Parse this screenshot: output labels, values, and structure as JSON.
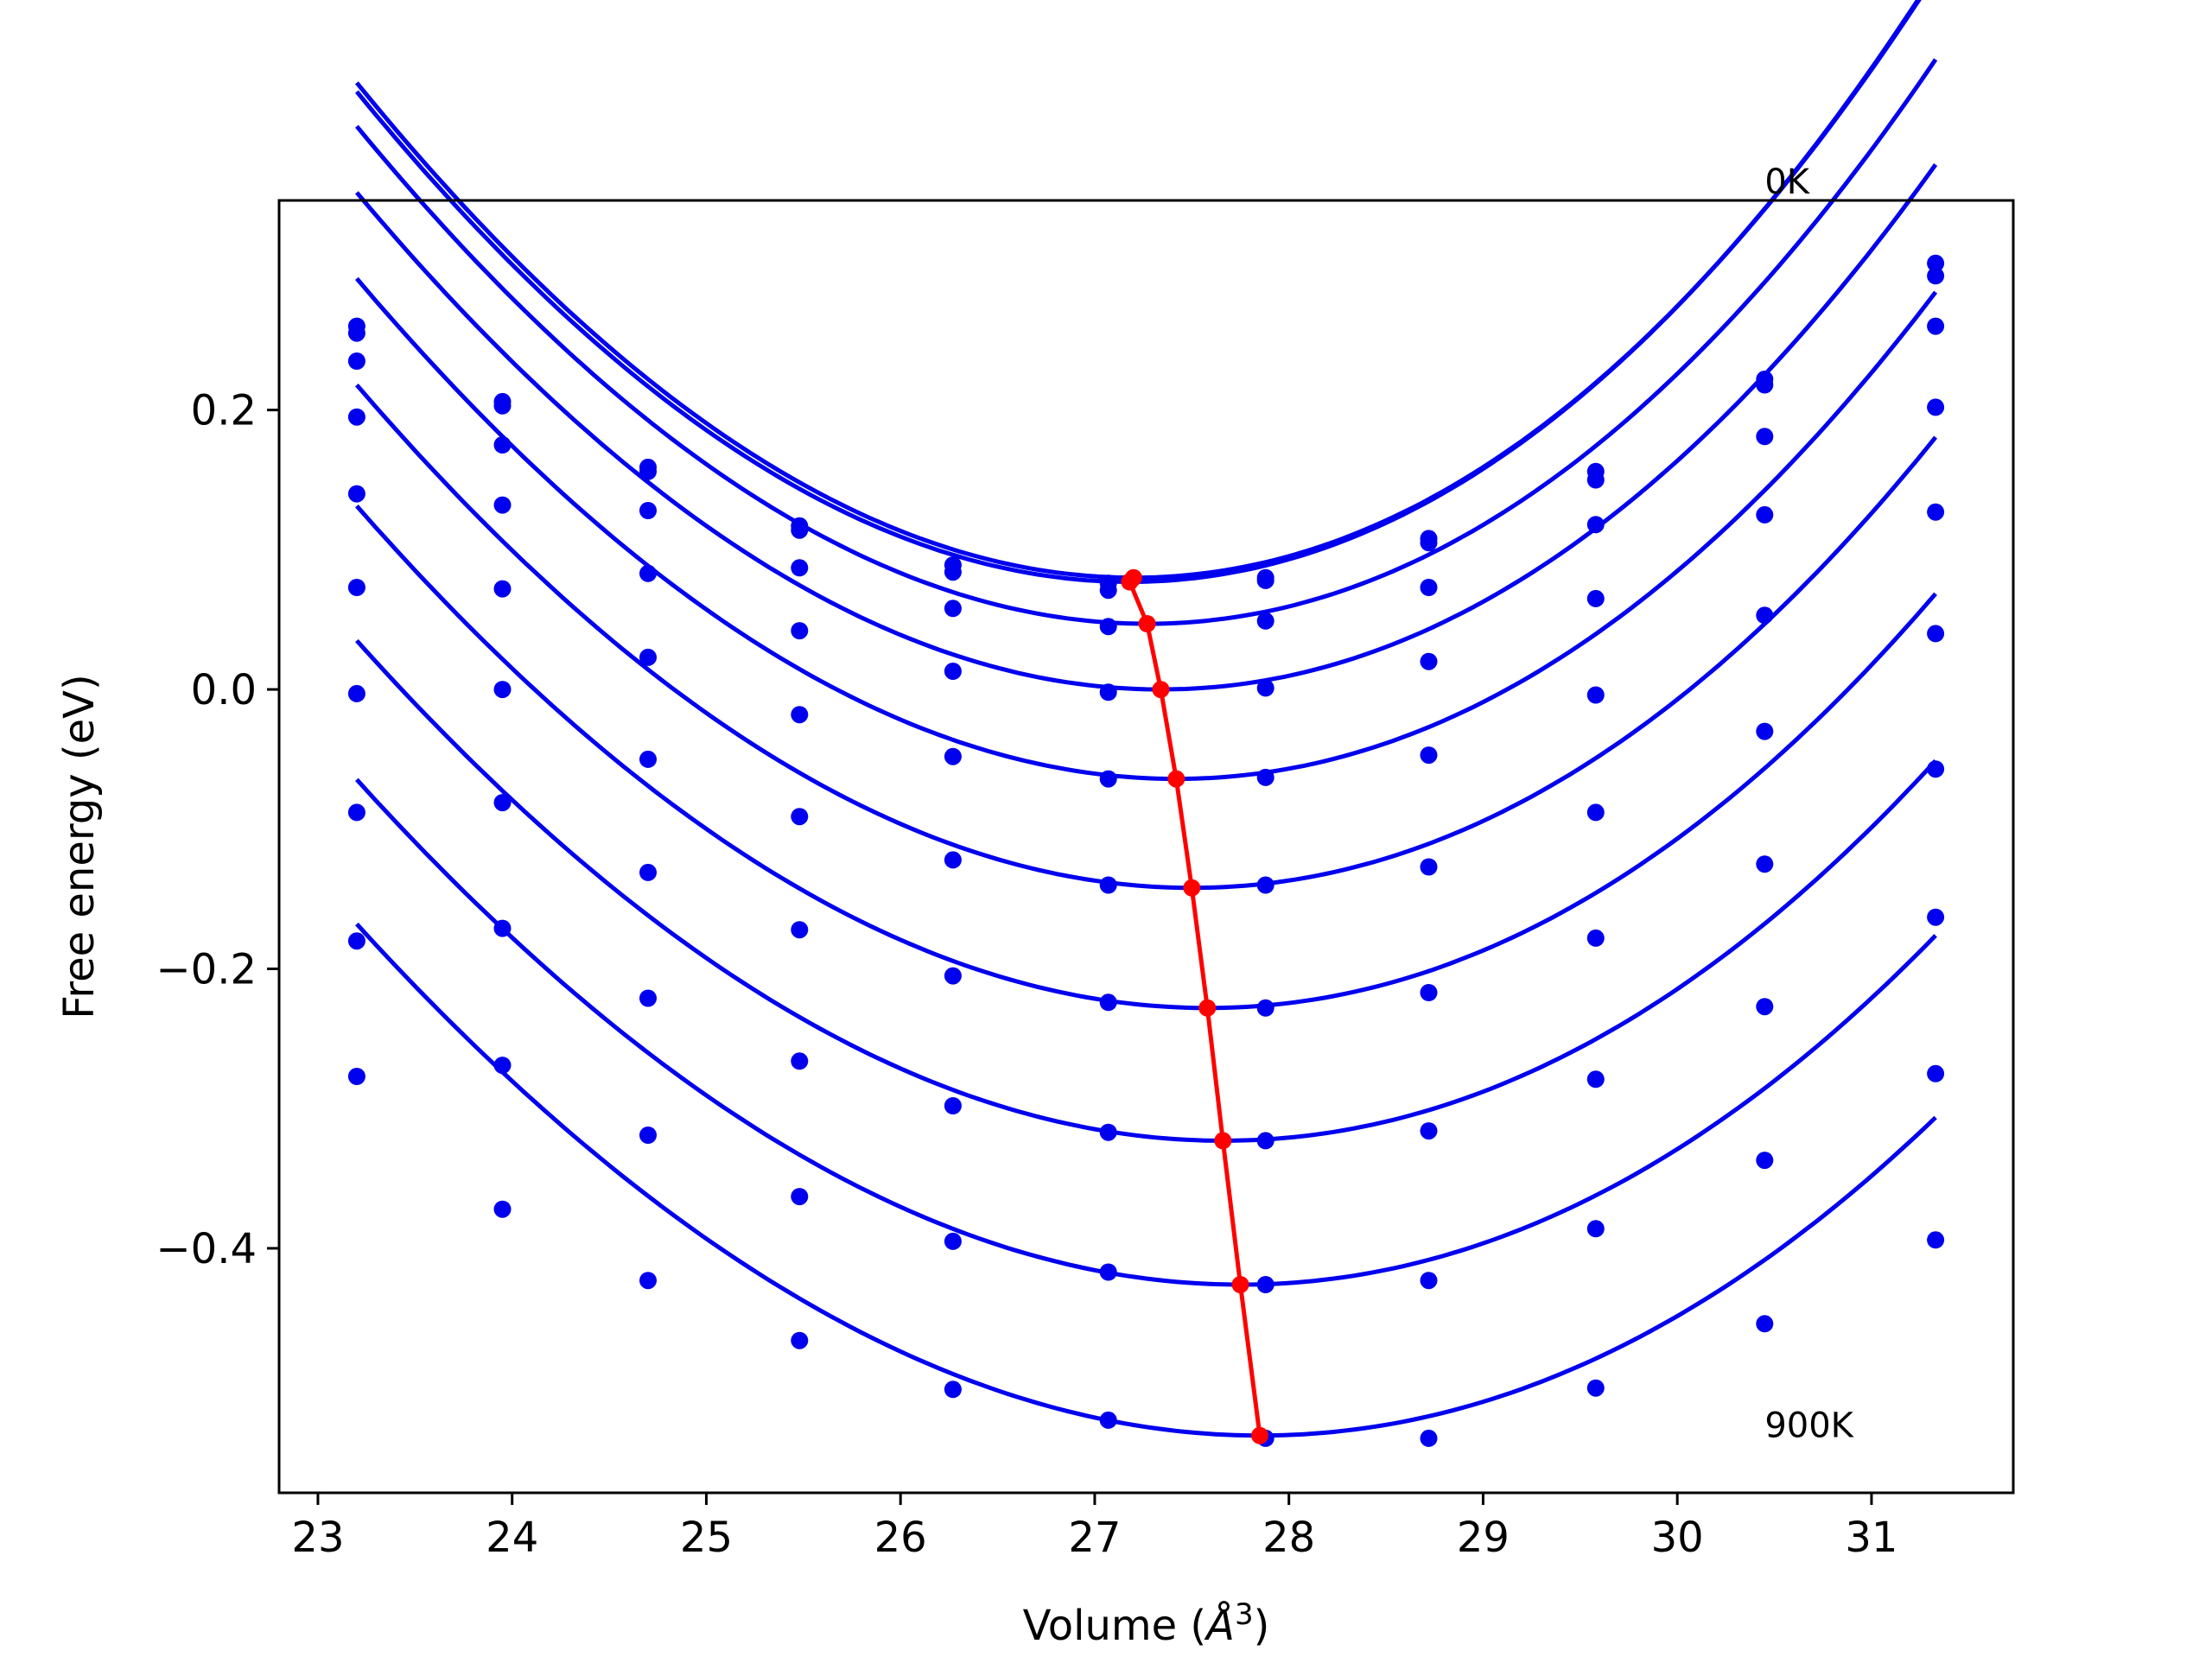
{
  "chart_data": {
    "type": "line",
    "title": "",
    "xlabel": "Volume (",
    "xlabel_symbol": "Å",
    "xlabel_exponent": "3",
    "xlabel_close": ")",
    "ylabel": "Free energy (eV)",
    "xlim": [
      22.8,
      31.73
    ],
    "ylim": [
      -0.575,
      0.35
    ],
    "xticks": [
      23,
      24,
      25,
      26,
      27,
      28,
      29,
      30,
      31
    ],
    "xtick_labels": [
      "23",
      "24",
      "25",
      "26",
      "27",
      "28",
      "29",
      "30",
      "31"
    ],
    "yticks": [
      -0.4,
      -0.2,
      0.0,
      0.2
    ],
    "ytick_labels": [
      "−0.4",
      "−0.2",
      "0.0",
      "0.2"
    ],
    "grid": false,
    "annotations": [
      {
        "text": "0K",
        "x": 30.45,
        "y": 0.355
      },
      {
        "text": "900K",
        "x": 30.45,
        "y": -0.535
      }
    ],
    "x": [
      23.2,
      23.95,
      24.7,
      25.48,
      26.27,
      27.07,
      27.88,
      28.72,
      29.58,
      30.45,
      31.33
    ],
    "curve_color": "#0000ee",
    "min_line_color": "#ff0000",
    "series": [
      {
        "points": [
          0.26,
          0.206,
          0.159,
          0.117,
          0.089,
          0.076,
          0.08,
          0.105,
          0.15,
          0.218,
          0.305
        ],
        "fit": {
          "min_x": 27.2,
          "min_y": 0.08,
          "a": 0.0237,
          "b": 0.00039,
          "c": 0.0
        }
      },
      {
        "points": [
          0.255,
          0.203,
          0.156,
          0.114,
          0.084,
          0.071,
          0.078,
          0.108,
          0.156,
          0.222,
          0.296
        ],
        "fit": {
          "min_x": 27.18,
          "min_y": 0.077,
          "a": 0.0237,
          "b": 0.00039,
          "c": 0.0
        }
      },
      {
        "points": [
          0.235,
          0.175,
          0.128,
          0.087,
          0.058,
          0.045,
          0.049,
          0.073,
          0.118,
          0.181,
          0.26
        ],
        "fit": {
          "min_x": 27.27,
          "min_y": 0.047,
          "a": 0.023,
          "b": 0.00037,
          "c": 0.0
        }
      },
      {
        "points": [
          0.195,
          0.132,
          0.083,
          0.042,
          0.013,
          -0.002,
          0.001,
          0.02,
          0.065,
          0.125,
          0.202
        ],
        "fit": {
          "min_x": 27.34,
          "min_y": 0.0,
          "a": 0.0222,
          "b": 0.00035,
          "c": 0.0
        }
      },
      {
        "points": [
          0.14,
          0.072,
          0.023,
          -0.018,
          -0.048,
          -0.064,
          -0.063,
          -0.047,
          -0.004,
          0.053,
          0.127
        ],
        "fit": {
          "min_x": 27.42,
          "min_y": -0.064,
          "a": 0.0215,
          "b": 0.00033,
          "c": 0.0
        }
      },
      {
        "points": [
          0.073,
          0.0,
          -0.05,
          -0.091,
          -0.122,
          -0.14,
          -0.14,
          -0.127,
          -0.088,
          -0.03,
          0.04
        ],
        "fit": {
          "min_x": 27.5,
          "min_y": -0.142,
          "a": 0.0208,
          "b": 0.00031,
          "c": 0.0
        }
      },
      {
        "points": [
          -0.003,
          -0.081,
          -0.131,
          -0.172,
          -0.205,
          -0.224,
          -0.228,
          -0.217,
          -0.178,
          -0.125,
          -0.057
        ],
        "fit": {
          "min_x": 27.58,
          "min_y": -0.228,
          "a": 0.02,
          "b": 0.00029,
          "c": 0.0
        }
      },
      {
        "points": [
          -0.088,
          -0.171,
          -0.221,
          -0.266,
          -0.298,
          -0.317,
          -0.323,
          -0.316,
          -0.279,
          -0.227,
          -0.163
        ],
        "fit": {
          "min_x": 27.66,
          "min_y": -0.323,
          "a": 0.0192,
          "b": 0.00027,
          "c": 0.0
        }
      },
      {
        "points": [
          -0.18,
          -0.269,
          -0.319,
          -0.363,
          -0.395,
          -0.417,
          -0.426,
          -0.423,
          -0.386,
          -0.337,
          -0.275
        ],
        "fit": {
          "min_x": 27.75,
          "min_y": -0.426,
          "a": 0.0186,
          "b": 0.00025,
          "c": 0.0
        }
      },
      {
        "points": [
          -0.277,
          -0.372,
          -0.423,
          -0.466,
          -0.501,
          -0.523,
          -0.536,
          -0.536,
          -0.5,
          -0.454,
          -0.394
        ],
        "fit": {
          "min_x": 27.85,
          "min_y": -0.534,
          "a": 0.018,
          "b": 0.00023,
          "c": 0.0
        }
      }
    ],
    "minima": {
      "x": [
        27.2,
        27.18,
        27.27,
        27.34,
        27.42,
        27.5,
        27.58,
        27.66,
        27.75,
        27.85
      ],
      "y": [
        0.08,
        0.077,
        0.047,
        0.0,
        -0.064,
        -0.142,
        -0.228,
        -0.323,
        -0.426,
        -0.534
      ]
    }
  }
}
